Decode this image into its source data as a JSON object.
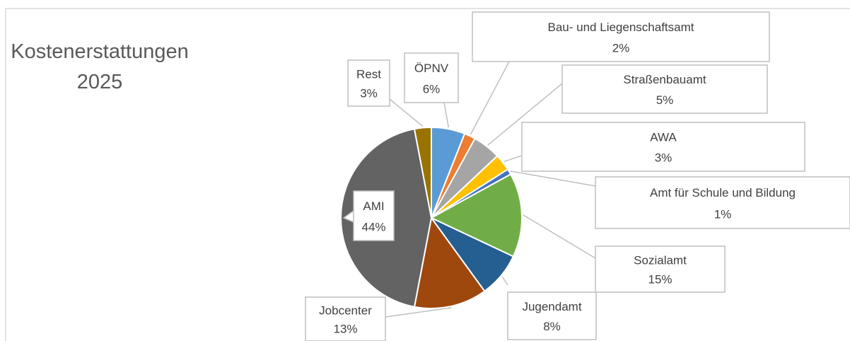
{
  "chart_data": {
    "type": "pie",
    "title": "Kostenerstattungen 2025",
    "categories": [
      "ÖPNV",
      "Bau- und Liegenschaftsamt",
      "Straßenbauamt",
      "AWA",
      "Amt für Schule und Bildung",
      "Sozialamt",
      "Jugendamt",
      "Jobcenter",
      "AMI",
      "Rest"
    ],
    "values": [
      6,
      2,
      5,
      3,
      1,
      15,
      8,
      13,
      44,
      3
    ],
    "value_labels": [
      "6%",
      "2%",
      "5%",
      "3%",
      "1%",
      "15%",
      "8%",
      "13%",
      "44%",
      "3%"
    ],
    "colors": [
      "#5b9bd5",
      "#ed7d31",
      "#a5a5a5",
      "#ffc000",
      "#4472c4",
      "#70ad47",
      "#255e91",
      "#9e480e",
      "#636363",
      "#997300"
    ]
  }
}
